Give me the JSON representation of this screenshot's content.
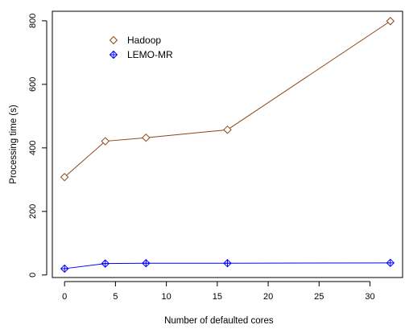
{
  "chart_data": {
    "type": "line",
    "title": "",
    "xlabel": "Number of defaulted cores",
    "ylabel": "Processing time (s)",
    "xlim": [
      -1.2,
      33.2
    ],
    "ylim": [
      -8,
      830
    ],
    "xticks": [
      0,
      5,
      10,
      15,
      20,
      25,
      30
    ],
    "yticks": [
      0,
      200,
      400,
      600,
      800
    ],
    "legend_position": "top-left",
    "series": [
      {
        "name": "Hadoop",
        "color": "#8B4513",
        "marker": "diamond",
        "x": [
          0,
          4,
          8,
          16,
          32
        ],
        "y": [
          308,
          421,
          432,
          457,
          799
        ]
      },
      {
        "name": "LEMO-MR",
        "color": "#0000FF",
        "marker": "diamond-plus",
        "x": [
          0,
          4,
          8,
          16,
          32
        ],
        "y": [
          20,
          36,
          37,
          37,
          38
        ]
      }
    ]
  }
}
